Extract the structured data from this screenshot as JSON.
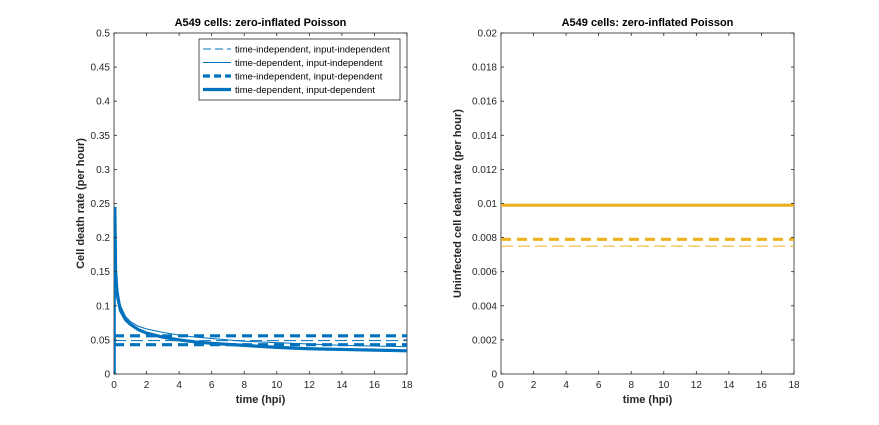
{
  "chart_data": [
    {
      "type": "line",
      "title": "A549 cells: zero-inflated Poisson",
      "xlabel": "time (hpi)",
      "ylabel": "Cell death rate (per hour)",
      "xlim": [
        0,
        18
      ],
      "ylim": [
        0,
        0.5
      ],
      "xticks": [
        0,
        2,
        4,
        6,
        8,
        10,
        12,
        14,
        16,
        18
      ],
      "yticks": [
        0,
        0.05,
        0.1,
        0.15,
        0.2,
        0.25,
        0.3,
        0.35,
        0.4,
        0.45,
        0.5
      ],
      "grid": false,
      "legend": "top-right",
      "color": "#0072BD",
      "series": [
        {
          "name": "time-independent, input-independent",
          "style": "dashed-thin",
          "x": [
            0,
            18
          ],
          "y": [
            0.049,
            0.049
          ]
        },
        {
          "name": "time-dependent, input-independent",
          "style": "solid-thin",
          "x": [
            0.05,
            0.1,
            0.2,
            0.4,
            0.7,
            1,
            1.5,
            2,
            3,
            4,
            5,
            6,
            8,
            10,
            12,
            14,
            16,
            18
          ],
          "y": [
            0.24,
            0.17,
            0.128,
            0.1,
            0.085,
            0.077,
            0.07,
            0.066,
            0.061,
            0.057,
            0.054,
            0.052,
            0.048,
            0.046,
            0.044,
            0.042,
            0.041,
            0.04
          ]
        },
        {
          "name": "time-independent, input-dependent",
          "style": "dashed-thick",
          "x": [
            0,
            18
          ],
          "y": [
            0.043,
            0.043
          ]
        },
        {
          "name": "time-independent, input-dependent",
          "style": "dashed-thick",
          "x": [
            0,
            18
          ],
          "y": [
            0.056,
            0.056
          ]
        },
        {
          "name": "time-dependent, input-dependent",
          "style": "solid-thick",
          "x": [
            0.05,
            0.1,
            0.2,
            0.4,
            0.7,
            1,
            1.5,
            2,
            3,
            4,
            5,
            6,
            8,
            10,
            12,
            14,
            16,
            18
          ],
          "y": [
            0.245,
            0.15,
            0.115,
            0.093,
            0.08,
            0.073,
            0.065,
            0.06,
            0.054,
            0.05,
            0.047,
            0.045,
            0.042,
            0.039,
            0.037,
            0.036,
            0.035,
            0.034
          ]
        }
      ]
    },
    {
      "type": "line",
      "title": "A549 cells: zero-inflated Poisson",
      "xlabel": "time (hpi)",
      "ylabel": "Uninfected cell death rate (per hour)",
      "xlim": [
        0,
        18
      ],
      "ylim": [
        0,
        0.02
      ],
      "xticks": [
        0,
        2,
        4,
        6,
        8,
        10,
        12,
        14,
        16,
        18
      ],
      "yticks": [
        0,
        0.002,
        0.004,
        0.006,
        0.008,
        0.01,
        0.012,
        0.014,
        0.016,
        0.018,
        0.02
      ],
      "grid": false,
      "color": "#EDB120",
      "series": [
        {
          "style": "dashed-thin",
          "x": [
            0,
            18
          ],
          "y": [
            0.0075,
            0.0075
          ]
        },
        {
          "style": "solid-thin",
          "x": [
            0,
            18
          ],
          "y": [
            0.0099,
            0.0099
          ]
        },
        {
          "style": "dashed-thick",
          "x": [
            0,
            18
          ],
          "y": [
            0.0079,
            0.0079
          ]
        },
        {
          "style": "solid-thick",
          "x": [
            0,
            18
          ],
          "y": [
            0.0099,
            0.0099
          ]
        }
      ]
    }
  ]
}
